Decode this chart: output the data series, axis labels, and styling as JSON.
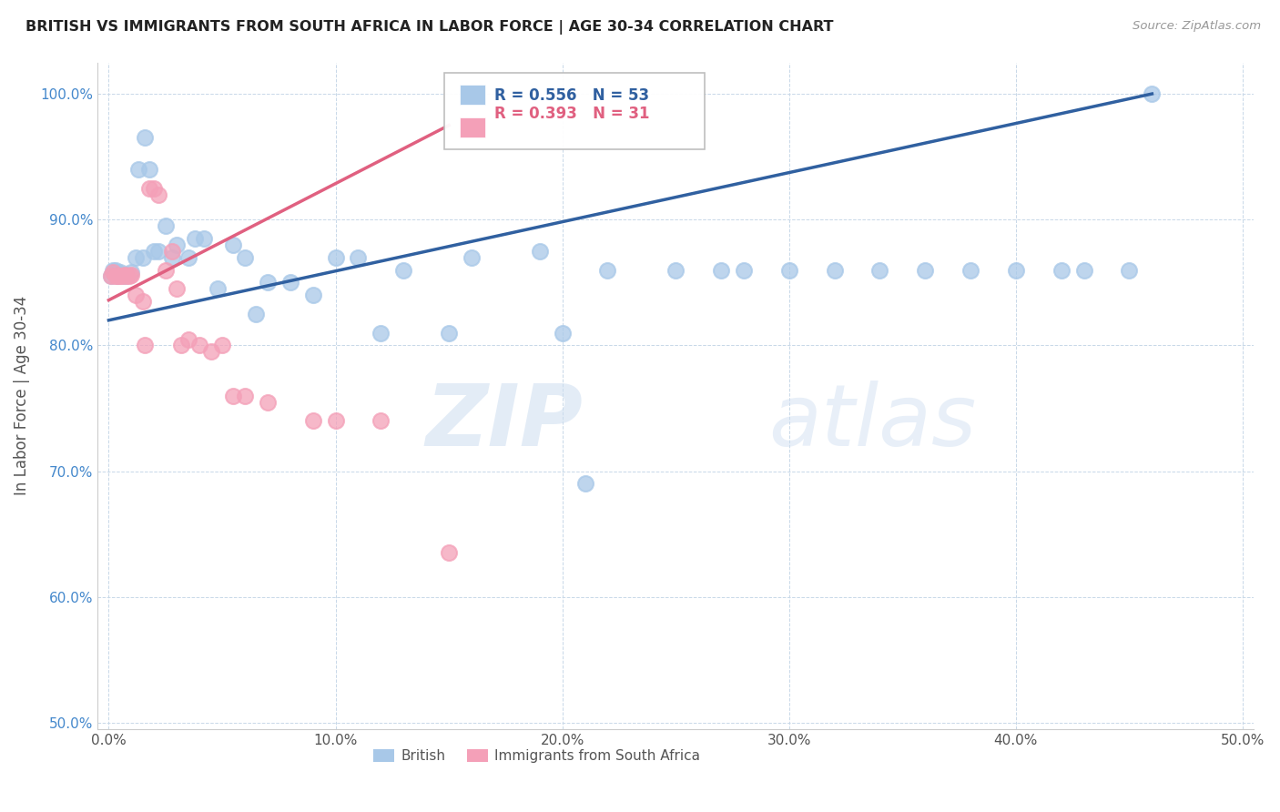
{
  "title": "BRITISH VS IMMIGRANTS FROM SOUTH AFRICA IN LABOR FORCE | AGE 30-34 CORRELATION CHART",
  "source": "Source: ZipAtlas.com",
  "ylabel": "In Labor Force | Age 30-34",
  "xlim": [
    -0.005,
    0.505
  ],
  "ylim": [
    0.495,
    1.025
  ],
  "xticks": [
    0.0,
    0.1,
    0.2,
    0.3,
    0.4,
    0.5
  ],
  "yticks": [
    0.5,
    0.6,
    0.7,
    0.8,
    0.9,
    1.0
  ],
  "ytick_labels": [
    "50.0%",
    "60.0%",
    "70.0%",
    "80.0%",
    "90.0%",
    "100.0%"
  ],
  "xtick_labels": [
    "0.0%",
    "10.0%",
    "20.0%",
    "30.0%",
    "40.0%",
    "50.0%"
  ],
  "british_color": "#a8c8e8",
  "sa_color": "#f4a0b8",
  "british_line_color": "#3060a0",
  "sa_line_color": "#e06080",
  "watermark_zip": "ZIP",
  "watermark_atlas": "atlas",
  "british_x": [
    0.001,
    0.002,
    0.003,
    0.003,
    0.004,
    0.005,
    0.006,
    0.007,
    0.008,
    0.01,
    0.012,
    0.013,
    0.015,
    0.016,
    0.018,
    0.02,
    0.022,
    0.025,
    0.028,
    0.03,
    0.035,
    0.038,
    0.042,
    0.048,
    0.055,
    0.06,
    0.065,
    0.07,
    0.08,
    0.09,
    0.1,
    0.11,
    0.12,
    0.13,
    0.15,
    0.16,
    0.19,
    0.2,
    0.21,
    0.22,
    0.25,
    0.27,
    0.28,
    0.3,
    0.32,
    0.34,
    0.36,
    0.38,
    0.4,
    0.42,
    0.43,
    0.45,
    0.46
  ],
  "british_y": [
    0.855,
    0.86,
    0.86,
    0.858,
    0.855,
    0.858,
    0.856,
    0.855,
    0.856,
    0.858,
    0.87,
    0.94,
    0.87,
    0.965,
    0.94,
    0.875,
    0.875,
    0.895,
    0.87,
    0.88,
    0.87,
    0.885,
    0.885,
    0.845,
    0.88,
    0.87,
    0.825,
    0.85,
    0.85,
    0.84,
    0.87,
    0.87,
    0.81,
    0.86,
    0.81,
    0.87,
    0.875,
    0.81,
    0.69,
    0.86,
    0.86,
    0.86,
    0.86,
    0.86,
    0.86,
    0.86,
    0.86,
    0.86,
    0.86,
    0.86,
    0.86,
    0.86,
    1.0
  ],
  "sa_x": [
    0.001,
    0.002,
    0.003,
    0.004,
    0.005,
    0.006,
    0.007,
    0.008,
    0.009,
    0.01,
    0.012,
    0.015,
    0.016,
    0.018,
    0.02,
    0.022,
    0.025,
    0.028,
    0.03,
    0.032,
    0.035,
    0.04,
    0.045,
    0.05,
    0.055,
    0.06,
    0.07,
    0.09,
    0.1,
    0.12,
    0.15
  ],
  "sa_y": [
    0.855,
    0.858,
    0.855,
    0.855,
    0.855,
    0.855,
    0.856,
    0.855,
    0.855,
    0.856,
    0.84,
    0.835,
    0.8,
    0.925,
    0.925,
    0.92,
    0.86,
    0.875,
    0.845,
    0.8,
    0.805,
    0.8,
    0.795,
    0.8,
    0.76,
    0.76,
    0.755,
    0.74,
    0.74,
    0.74,
    0.635
  ],
  "british_trend_x": [
    0.0,
    0.46
  ],
  "british_trend_y": [
    0.82,
    1.0
  ],
  "sa_trend_x": [
    0.0,
    0.15
  ],
  "sa_trend_y": [
    0.836,
    0.975
  ]
}
